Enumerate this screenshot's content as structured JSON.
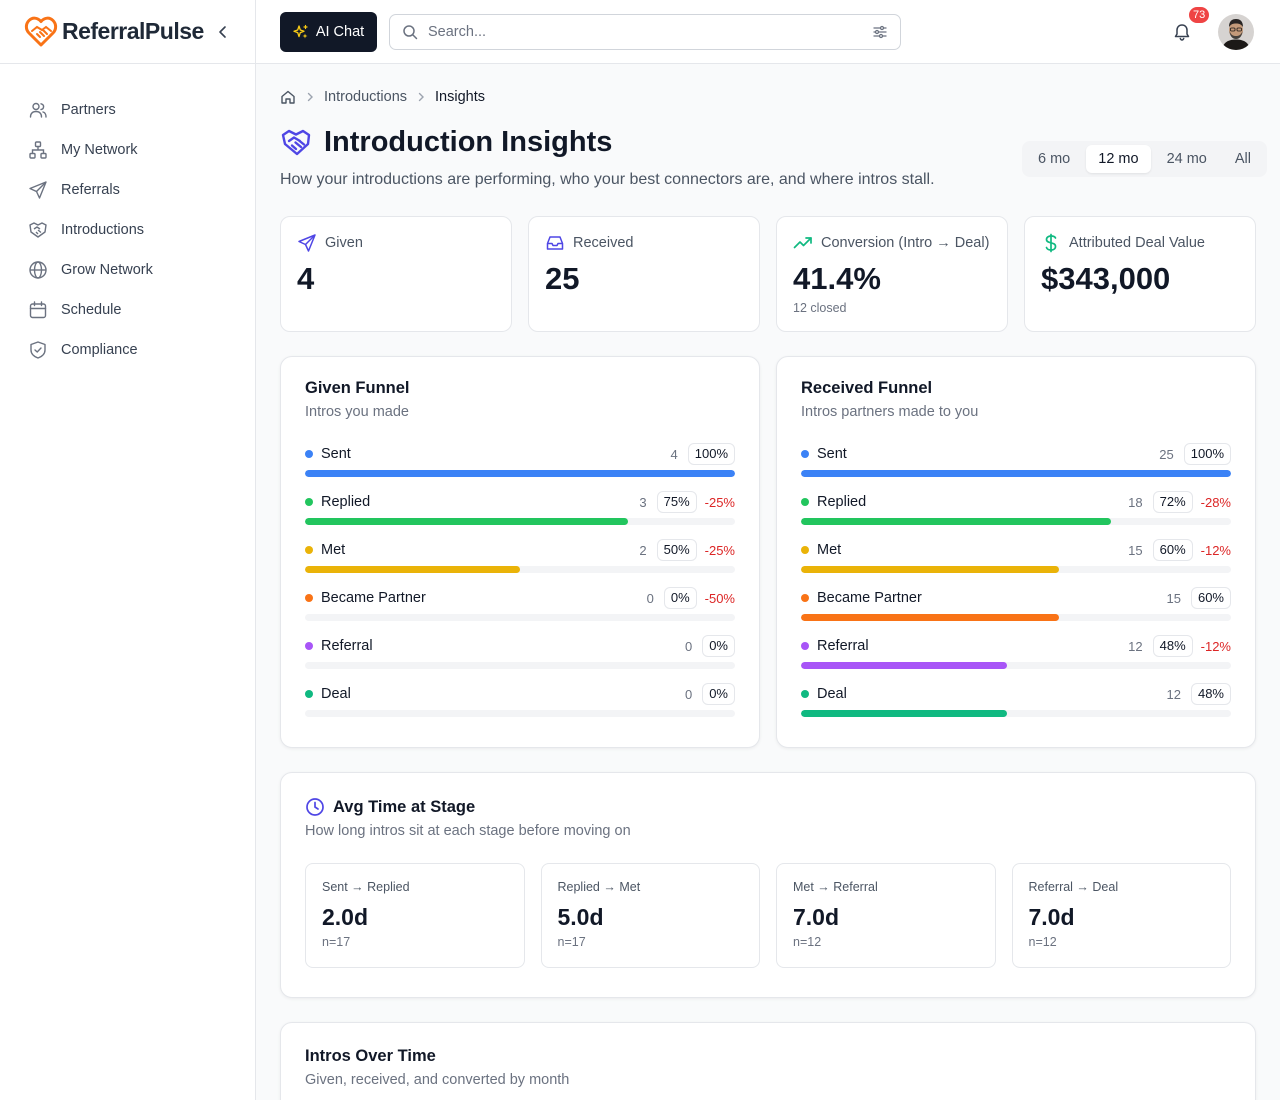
{
  "brand": {
    "name": "ReferralPulse"
  },
  "sidebar": {
    "items": [
      {
        "label": "Partners",
        "icon": "users-icon"
      },
      {
        "label": "My Network",
        "icon": "network-icon"
      },
      {
        "label": "Referrals",
        "icon": "send-icon"
      },
      {
        "label": "Introductions",
        "icon": "handshake-icon"
      },
      {
        "label": "Grow Network",
        "icon": "globe-icon"
      },
      {
        "label": "Schedule",
        "icon": "calendar-icon"
      },
      {
        "label": "Compliance",
        "icon": "shield-icon"
      }
    ]
  },
  "topbar": {
    "ai_chat_label": "AI Chat",
    "search_placeholder": "Search...",
    "notification_count": "73"
  },
  "breadcrumb": {
    "items": [
      "Introductions",
      "Insights"
    ]
  },
  "page": {
    "title": "Introduction Insights",
    "subtitle": "How your introductions are performing, who your best connectors are, and where intros stall."
  },
  "period": {
    "options": [
      "6 mo",
      "12 mo",
      "24 mo",
      "All"
    ],
    "selected": "12 mo"
  },
  "kpis": [
    {
      "label": "Given",
      "value": "4",
      "sub": "",
      "icon": "send-icon",
      "color": "#4f46e5"
    },
    {
      "label": "Received",
      "value": "25",
      "sub": "",
      "icon": "inbox-icon",
      "color": "#4f46e5"
    },
    {
      "label": "Conversion (Intro → Deal)",
      "value": "41.4%",
      "sub": "12 closed",
      "icon": "trending-up-icon",
      "color": "#10b981"
    },
    {
      "label": "Attributed Deal Value",
      "value": "$343,000",
      "sub": "",
      "icon": "dollar-icon",
      "color": "#10b981"
    }
  ],
  "funnels": [
    {
      "title": "Given Funnel",
      "subtitle": "Intros you made",
      "stages": [
        {
          "name": "Sent",
          "count": "4",
          "pct": "100%",
          "delta": "",
          "fraction": 1.0,
          "color": "#3b82f6"
        },
        {
          "name": "Replied",
          "count": "3",
          "pct": "75%",
          "delta": "-25%",
          "fraction": 0.75,
          "color": "#22c55e"
        },
        {
          "name": "Met",
          "count": "2",
          "pct": "50%",
          "delta": "-25%",
          "fraction": 0.5,
          "color": "#eab308"
        },
        {
          "name": "Became Partner",
          "count": "0",
          "pct": "0%",
          "delta": "-50%",
          "fraction": 0.0,
          "color": "#f97316"
        },
        {
          "name": "Referral",
          "count": "0",
          "pct": "0%",
          "delta": "",
          "fraction": 0.0,
          "color": "#a855f7"
        },
        {
          "name": "Deal",
          "count": "0",
          "pct": "0%",
          "delta": "",
          "fraction": 0.0,
          "color": "#10b981"
        }
      ]
    },
    {
      "title": "Received Funnel",
      "subtitle": "Intros partners made to you",
      "stages": [
        {
          "name": "Sent",
          "count": "25",
          "pct": "100%",
          "delta": "",
          "fraction": 1.0,
          "color": "#3b82f6"
        },
        {
          "name": "Replied",
          "count": "18",
          "pct": "72%",
          "delta": "-28%",
          "fraction": 0.72,
          "color": "#22c55e"
        },
        {
          "name": "Met",
          "count": "15",
          "pct": "60%",
          "delta": "-12%",
          "fraction": 0.6,
          "color": "#eab308"
        },
        {
          "name": "Became Partner",
          "count": "15",
          "pct": "60%",
          "delta": "",
          "fraction": 0.6,
          "color": "#f97316"
        },
        {
          "name": "Referral",
          "count": "12",
          "pct": "48%",
          "delta": "-12%",
          "fraction": 0.48,
          "color": "#a855f7"
        },
        {
          "name": "Deal",
          "count": "12",
          "pct": "48%",
          "delta": "",
          "fraction": 0.48,
          "color": "#10b981"
        }
      ]
    }
  ],
  "avg_time": {
    "title": "Avg Time at Stage",
    "subtitle": "How long intros sit at each stage before moving on",
    "items": [
      {
        "label": "Sent → Replied",
        "value": "2.0d",
        "n": "n=17"
      },
      {
        "label": "Replied → Met",
        "value": "5.0d",
        "n": "n=17"
      },
      {
        "label": "Met → Referral",
        "value": "7.0d",
        "n": "n=12"
      },
      {
        "label": "Referral → Deal",
        "value": "7.0d",
        "n": "n=12"
      }
    ]
  },
  "over_time": {
    "title": "Intros Over Time",
    "subtitle": "Given, received, and converted by month"
  },
  "colors": {
    "accent": "#4f46e5",
    "brand": "#f97316",
    "dark": "#111827"
  }
}
